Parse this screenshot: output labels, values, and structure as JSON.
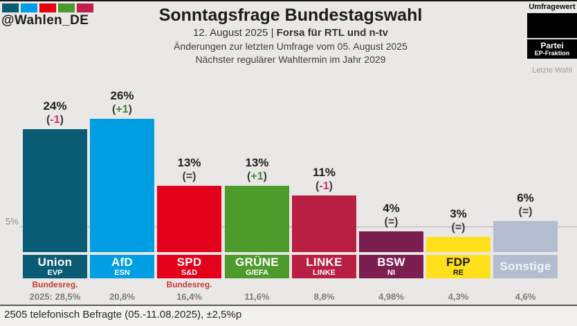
{
  "meta": {
    "handle": "@Wahlen_DE",
    "logo_colors": [
      "#0a5c75",
      "#009fe3",
      "#e3000f",
      "#4a9b2c",
      "#c01f4a"
    ]
  },
  "header": {
    "title": "Sonntagsfrage Bundestagswahl",
    "date": "12. August 2025 ",
    "separator": "| ",
    "source": "Forsa für RTL und n-tv",
    "change_note": "Änderungen zur letzten Umfrage vom 05. August 2025",
    "next_election": "Nächster regulärer Wahltermin im Jahr 2029"
  },
  "legend": {
    "poll_value_label": "Umfragewert",
    "party_label": "Partei",
    "fraction_label": "EP-Fraktion",
    "last_election_label": "Letzte Wahl",
    "sample_color": "#000000"
  },
  "axis": {
    "gridline_label": "5%",
    "gridline_value": 5
  },
  "parties": [
    {
      "name": "Union",
      "fraction": "EVP",
      "value": 24,
      "value_label": "24%",
      "change": "-1",
      "change_dir": "down",
      "color": "#0a5c75",
      "text_color": "#ffffff",
      "note": "Bundesreg.",
      "last_election": "2025: 28,5%"
    },
    {
      "name": "AfD",
      "fraction": "ESN",
      "value": 26,
      "value_label": "26%",
      "change": "+1",
      "change_dir": "up",
      "color": "#009fe3",
      "text_color": "#ffffff",
      "note": "",
      "last_election": "20,8%"
    },
    {
      "name": "SPD",
      "fraction": "S&D",
      "value": 13,
      "value_label": "13%",
      "change": "=",
      "change_dir": "same",
      "color": "#e3001a",
      "text_color": "#ffffff",
      "note": "Bundesreg.",
      "last_election": "16,4%"
    },
    {
      "name": "GRÜNE",
      "fraction": "G/EFA",
      "value": 13,
      "value_label": "13%",
      "change": "+1",
      "change_dir": "up",
      "color": "#4d9b2c",
      "text_color": "#ffffff",
      "note": "",
      "last_election": "11,6%"
    },
    {
      "name": "LINKE",
      "fraction": "LINKE",
      "value": 11,
      "value_label": "11%",
      "change": "-1",
      "change_dir": "down",
      "color": "#b81f42",
      "text_color": "#ffffff",
      "note": "",
      "last_election": "8,8%"
    },
    {
      "name": "BSW",
      "fraction": "NI",
      "value": 4,
      "value_label": "4%",
      "change": "=",
      "change_dir": "same",
      "color": "#7a1f4f",
      "text_color": "#ffffff",
      "note": "",
      "last_election": "4,98%"
    },
    {
      "name": "FDP",
      "fraction": "RE",
      "value": 3,
      "value_label": "3%",
      "change": "=",
      "change_dir": "same",
      "color": "#ffe01a",
      "text_color": "#1a1a1a",
      "note": "",
      "last_election": "4,3%"
    },
    {
      "name": "Sonstige",
      "fraction": "",
      "value": 6,
      "value_label": "6%",
      "change": "=",
      "change_dir": "same",
      "color": "#b3bdcf",
      "text_color": "#f0f2f6",
      "note": "",
      "last_election": "4,6%"
    }
  ],
  "change_colors": {
    "down": "#d23050",
    "up": "#3d8b2f",
    "same": "#3a3a3a"
  },
  "footer": {
    "text": "2505 telefonisch Befragte (05.-11.08.2025), ±2,5%p"
  },
  "chart_data": {
    "type": "bar",
    "title": "Sonntagsfrage Bundestagswahl",
    "subtitle": "12. August 2025 | Forsa für RTL und n-tv",
    "annotations": [
      "Änderungen zur letzten Umfrage vom 05. August 2025",
      "Nächster regulärer Wahltermin im Jahr 2029",
      "2505 telefonisch Befragte (05.-11.08.2025), ±2,5%p"
    ],
    "categories": [
      "Union",
      "AfD",
      "SPD",
      "GRÜNE",
      "LINKE",
      "BSW",
      "FDP",
      "Sonstige"
    ],
    "series": [
      {
        "name": "Umfragewert",
        "values": [
          24,
          26,
          13,
          13,
          11,
          4,
          3,
          6
        ]
      },
      {
        "name": "Änderung zur letzten Umfrage",
        "values": [
          -1,
          1,
          0,
          1,
          -1,
          0,
          0,
          0
        ]
      },
      {
        "name": "Letzte Wahl",
        "values": [
          28.5,
          20.8,
          16.4,
          11.6,
          8.8,
          4.98,
          4.3,
          4.6
        ]
      }
    ],
    "ep_fractions": [
      "EVP",
      "ESN",
      "S&D",
      "G/EFA",
      "LINKE",
      "NI",
      "RE",
      ""
    ],
    "bar_colors": [
      "#0a5c75",
      "#009fe3",
      "#e3001a",
      "#4d9b2c",
      "#b81f42",
      "#7a1f4f",
      "#ffe01a",
      "#b3bdcf"
    ],
    "xlabel": "",
    "ylabel": "",
    "ylim": [
      0,
      28
    ],
    "gridlines": [
      5
    ],
    "legend_position": "top-right",
    "grid": true
  }
}
